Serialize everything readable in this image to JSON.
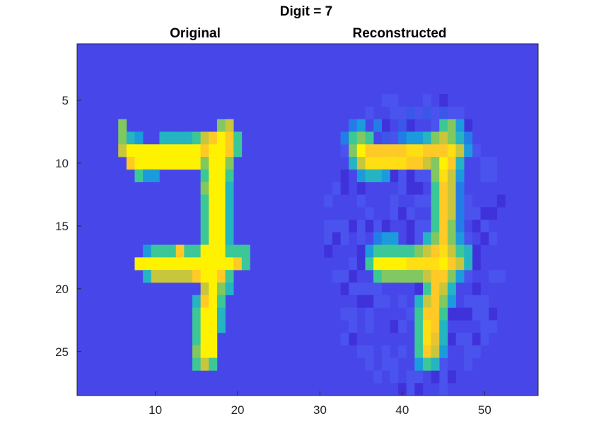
{
  "chart_data": {
    "type": "heatmap",
    "title": "Digit = 7",
    "subtitles": [
      "Original",
      "Reconstructed"
    ],
    "x_ticks": [
      "10",
      "20",
      "30",
      "40",
      "50"
    ],
    "y_ticks": [
      "5",
      "10",
      "15",
      "20",
      "25"
    ],
    "xlim": [
      0.5,
      56.5
    ],
    "ylim": [
      0.5,
      28.5
    ],
    "y_reversed": true,
    "colormap": "parula",
    "colors": {
      "background": "#4747e9",
      "low": "#3d2bd6",
      "high": "#fff200",
      "digit": "#ffc22e"
    },
    "digit_cells": {
      "original": [
        [
          7,
          6,
          0.7
        ],
        [
          7,
          18,
          0.7
        ],
        [
          7,
          19,
          0.8
        ],
        [
          8,
          6,
          0.7
        ],
        [
          8,
          7,
          0.5
        ],
        [
          8,
          8,
          0.4
        ],
        [
          8,
          11,
          0.5
        ],
        [
          8,
          12,
          0.5
        ],
        [
          8,
          13,
          0.5
        ],
        [
          8,
          14,
          0.5
        ],
        [
          8,
          15,
          0.6
        ],
        [
          8,
          16,
          0.8
        ],
        [
          8,
          17,
          0.9
        ],
        [
          8,
          18,
          1.0
        ],
        [
          8,
          19,
          0.9
        ],
        [
          8,
          20,
          0.6
        ],
        [
          9,
          6,
          0.8
        ],
        [
          9,
          7,
          1.0
        ],
        [
          9,
          8,
          1.0
        ],
        [
          9,
          9,
          1.0
        ],
        [
          9,
          10,
          1.0
        ],
        [
          9,
          11,
          1.0
        ],
        [
          9,
          12,
          1.0
        ],
        [
          9,
          13,
          1.0
        ],
        [
          9,
          14,
          1.0
        ],
        [
          9,
          15,
          1.0
        ],
        [
          9,
          16,
          0.9
        ],
        [
          9,
          17,
          1.0
        ],
        [
          9,
          18,
          1.0
        ],
        [
          9,
          19,
          0.9
        ],
        [
          9,
          20,
          0.6
        ],
        [
          10,
          7,
          0.9
        ],
        [
          10,
          8,
          1.0
        ],
        [
          10,
          9,
          1.0
        ],
        [
          10,
          10,
          1.0
        ],
        [
          10,
          11,
          1.0
        ],
        [
          10,
          12,
          1.0
        ],
        [
          10,
          13,
          1.0
        ],
        [
          10,
          14,
          1.0
        ],
        [
          10,
          15,
          1.0
        ],
        [
          10,
          16,
          0.7
        ],
        [
          10,
          17,
          1.0
        ],
        [
          10,
          18,
          1.0
        ],
        [
          10,
          19,
          0.7
        ],
        [
          11,
          8,
          0.6
        ],
        [
          11,
          9,
          0.4
        ],
        [
          11,
          10,
          0.4
        ],
        [
          11,
          16,
          0.6
        ],
        [
          11,
          17,
          1.0
        ],
        [
          11,
          18,
          1.0
        ],
        [
          11,
          19,
          0.6
        ],
        [
          12,
          16,
          0.7
        ],
        [
          12,
          17,
          1.0
        ],
        [
          12,
          18,
          1.0
        ],
        [
          12,
          19,
          0.5
        ],
        [
          13,
          16,
          0.6
        ],
        [
          13,
          17,
          1.0
        ],
        [
          13,
          18,
          1.0
        ],
        [
          13,
          19,
          0.5
        ],
        [
          14,
          16,
          0.6
        ],
        [
          14,
          17,
          1.0
        ],
        [
          14,
          18,
          1.0
        ],
        [
          14,
          19,
          0.5
        ],
        [
          15,
          16,
          0.6
        ],
        [
          15,
          17,
          1.0
        ],
        [
          15,
          18,
          1.0
        ],
        [
          15,
          19,
          0.5
        ],
        [
          16,
          16,
          0.6
        ],
        [
          16,
          17,
          1.0
        ],
        [
          16,
          18,
          1.0
        ],
        [
          16,
          19,
          0.5
        ],
        [
          17,
          9,
          0.4
        ],
        [
          17,
          10,
          0.6
        ],
        [
          17,
          11,
          0.6
        ],
        [
          17,
          12,
          0.6
        ],
        [
          17,
          13,
          0.9
        ],
        [
          17,
          14,
          0.6
        ],
        [
          17,
          15,
          0.6
        ],
        [
          17,
          16,
          1.0
        ],
        [
          17,
          17,
          1.0
        ],
        [
          17,
          18,
          1.0
        ],
        [
          17,
          19,
          0.6
        ],
        [
          17,
          20,
          0.6
        ],
        [
          17,
          21,
          0.6
        ],
        [
          18,
          8,
          1.0
        ],
        [
          18,
          9,
          1.0
        ],
        [
          18,
          10,
          1.0
        ],
        [
          18,
          11,
          1.0
        ],
        [
          18,
          12,
          1.0
        ],
        [
          18,
          13,
          1.0
        ],
        [
          18,
          14,
          1.0
        ],
        [
          18,
          15,
          1.0
        ],
        [
          18,
          16,
          1.0
        ],
        [
          18,
          17,
          1.0
        ],
        [
          18,
          18,
          1.0
        ],
        [
          18,
          19,
          1.0
        ],
        [
          18,
          20,
          0.9
        ],
        [
          18,
          21,
          0.6
        ],
        [
          19,
          9,
          0.5
        ],
        [
          19,
          10,
          0.8
        ],
        [
          19,
          11,
          0.8
        ],
        [
          19,
          12,
          0.8
        ],
        [
          19,
          13,
          0.8
        ],
        [
          19,
          14,
          0.8
        ],
        [
          19,
          15,
          0.9
        ],
        [
          19,
          16,
          1.0
        ],
        [
          19,
          17,
          1.0
        ],
        [
          19,
          18,
          0.9
        ],
        [
          19,
          19,
          0.6
        ],
        [
          20,
          16,
          0.8
        ],
        [
          20,
          17,
          1.0
        ],
        [
          20,
          18,
          0.7
        ],
        [
          20,
          19,
          0.5
        ],
        [
          21,
          15,
          0.5
        ],
        [
          21,
          16,
          0.9
        ],
        [
          21,
          17,
          1.0
        ],
        [
          21,
          18,
          0.6
        ],
        [
          22,
          15,
          0.6
        ],
        [
          22,
          16,
          1.0
        ],
        [
          22,
          17,
          1.0
        ],
        [
          22,
          18,
          0.5
        ],
        [
          23,
          15,
          0.6
        ],
        [
          23,
          16,
          1.0
        ],
        [
          23,
          17,
          1.0
        ],
        [
          23,
          18,
          0.5
        ],
        [
          24,
          15,
          0.6
        ],
        [
          24,
          16,
          1.0
        ],
        [
          24,
          17,
          1.0
        ],
        [
          25,
          15,
          0.7
        ],
        [
          25,
          16,
          1.0
        ],
        [
          25,
          17,
          1.0
        ],
        [
          26,
          15,
          0.6
        ],
        [
          26,
          16,
          0.8
        ],
        [
          26,
          17,
          0.6
        ]
      ],
      "reconstructed": [
        [
          6,
          41,
          0.1
        ],
        [
          6,
          43,
          0.1
        ],
        [
          6,
          45,
          0.1
        ],
        [
          7,
          34,
          0.3
        ],
        [
          7,
          35,
          0.4
        ],
        [
          7,
          37,
          0.3
        ],
        [
          7,
          40,
          0.1
        ],
        [
          7,
          45,
          0.6
        ],
        [
          7,
          46,
          0.7
        ],
        [
          7,
          47,
          0.4
        ],
        [
          8,
          33,
          0.3
        ],
        [
          8,
          34,
          0.6
        ],
        [
          8,
          35,
          0.7
        ],
        [
          8,
          36,
          0.6
        ],
        [
          8,
          38,
          0.1
        ],
        [
          8,
          40,
          0.3
        ],
        [
          8,
          41,
          0.4
        ],
        [
          8,
          42,
          0.4
        ],
        [
          8,
          43,
          0.5
        ],
        [
          8,
          44,
          0.7
        ],
        [
          8,
          45,
          0.8
        ],
        [
          8,
          46,
          0.7
        ],
        [
          8,
          47,
          0.5
        ],
        [
          8,
          48,
          0.3
        ],
        [
          9,
          34,
          0.7
        ],
        [
          9,
          35,
          1.0
        ],
        [
          9,
          36,
          0.9
        ],
        [
          9,
          37,
          0.9
        ],
        [
          9,
          38,
          0.9
        ],
        [
          9,
          39,
          0.9
        ],
        [
          9,
          40,
          0.9
        ],
        [
          9,
          41,
          0.95
        ],
        [
          9,
          42,
          0.95
        ],
        [
          9,
          43,
          0.9
        ],
        [
          9,
          44,
          0.9
        ],
        [
          9,
          45,
          0.9
        ],
        [
          9,
          46,
          0.95
        ],
        [
          9,
          47,
          0.8
        ],
        [
          9,
          48,
          0.4
        ],
        [
          10,
          34,
          0.5
        ],
        [
          10,
          35,
          0.8
        ],
        [
          10,
          36,
          0.95
        ],
        [
          10,
          37,
          0.95
        ],
        [
          10,
          38,
          0.95
        ],
        [
          10,
          39,
          0.95
        ],
        [
          10,
          40,
          0.95
        ],
        [
          10,
          41,
          0.9
        ],
        [
          10,
          42,
          0.9
        ],
        [
          10,
          43,
          0.8
        ],
        [
          10,
          44,
          0.7
        ],
        [
          10,
          45,
          1.0
        ],
        [
          10,
          46,
          0.9
        ],
        [
          10,
          47,
          0.5
        ],
        [
          11,
          35,
          0.4
        ],
        [
          11,
          36,
          0.5
        ],
        [
          11,
          37,
          0.5
        ],
        [
          11,
          38,
          0.4
        ],
        [
          11,
          44,
          0.7
        ],
        [
          11,
          45,
          0.95
        ],
        [
          11,
          46,
          0.8
        ],
        [
          11,
          47,
          0.4
        ],
        [
          12,
          44,
          0.6
        ],
        [
          12,
          45,
          0.9
        ],
        [
          12,
          46,
          0.8
        ],
        [
          12,
          47,
          0.3
        ],
        [
          13,
          44,
          0.6
        ],
        [
          13,
          45,
          0.9
        ],
        [
          13,
          46,
          0.8
        ],
        [
          13,
          47,
          0.3
        ],
        [
          14,
          44,
          0.6
        ],
        [
          14,
          45,
          0.9
        ],
        [
          14,
          46,
          0.8
        ],
        [
          14,
          47,
          0.3
        ],
        [
          15,
          44,
          0.6
        ],
        [
          15,
          45,
          0.9
        ],
        [
          15,
          46,
          0.7
        ],
        [
          15,
          47,
          0.3
        ],
        [
          16,
          37,
          0.3
        ],
        [
          16,
          38,
          0.4
        ],
        [
          16,
          39,
          0.4
        ],
        [
          16,
          43,
          0.5
        ],
        [
          16,
          44,
          0.7
        ],
        [
          16,
          45,
          0.9
        ],
        [
          16,
          46,
          0.7
        ],
        [
          16,
          47,
          0.4
        ],
        [
          17,
          36,
          0.4
        ],
        [
          17,
          37,
          0.6
        ],
        [
          17,
          38,
          0.6
        ],
        [
          17,
          39,
          0.6
        ],
        [
          17,
          40,
          0.6
        ],
        [
          17,
          41,
          0.6
        ],
        [
          17,
          42,
          0.7
        ],
        [
          17,
          43,
          0.8
        ],
        [
          17,
          44,
          0.9
        ],
        [
          17,
          45,
          0.95
        ],
        [
          17,
          46,
          0.8
        ],
        [
          17,
          47,
          0.6
        ],
        [
          17,
          48,
          0.5
        ],
        [
          18,
          36,
          0.6
        ],
        [
          18,
          37,
          1.0
        ],
        [
          18,
          38,
          1.0
        ],
        [
          18,
          39,
          1.0
        ],
        [
          18,
          40,
          1.0
        ],
        [
          18,
          41,
          0.95
        ],
        [
          18,
          42,
          0.95
        ],
        [
          18,
          43,
          0.95
        ],
        [
          18,
          44,
          0.95
        ],
        [
          18,
          45,
          1.0
        ],
        [
          18,
          46,
          0.9
        ],
        [
          18,
          47,
          0.8
        ],
        [
          18,
          48,
          0.5
        ],
        [
          19,
          37,
          0.6
        ],
        [
          19,
          38,
          0.7
        ],
        [
          19,
          39,
          0.7
        ],
        [
          19,
          40,
          0.7
        ],
        [
          19,
          41,
          0.7
        ],
        [
          19,
          42,
          0.7
        ],
        [
          19,
          43,
          0.8
        ],
        [
          19,
          44,
          0.9
        ],
        [
          19,
          45,
          0.9
        ],
        [
          19,
          46,
          0.7
        ],
        [
          19,
          47,
          0.4
        ],
        [
          20,
          43,
          0.6
        ],
        [
          20,
          44,
          0.9
        ],
        [
          20,
          45,
          0.8
        ],
        [
          20,
          46,
          0.5
        ],
        [
          21,
          42,
          0.5
        ],
        [
          21,
          43,
          0.8
        ],
        [
          21,
          44,
          0.9
        ],
        [
          21,
          45,
          0.7
        ],
        [
          21,
          46,
          0.4
        ],
        [
          22,
          42,
          0.6
        ],
        [
          22,
          43,
          0.9
        ],
        [
          22,
          44,
          0.9
        ],
        [
          22,
          45,
          0.6
        ],
        [
          23,
          42,
          0.6
        ],
        [
          23,
          43,
          0.95
        ],
        [
          23,
          44,
          0.9
        ],
        [
          23,
          45,
          0.5
        ],
        [
          24,
          42,
          0.6
        ],
        [
          24,
          43,
          0.95
        ],
        [
          24,
          44,
          0.85
        ],
        [
          24,
          45,
          0.5
        ],
        [
          25,
          42,
          0.6
        ],
        [
          25,
          43,
          0.9
        ],
        [
          25,
          44,
          0.8
        ],
        [
          25,
          45,
          0.4
        ],
        [
          26,
          42,
          0.4
        ],
        [
          26,
          43,
          0.6
        ],
        [
          26,
          44,
          0.5
        ]
      ]
    }
  }
}
